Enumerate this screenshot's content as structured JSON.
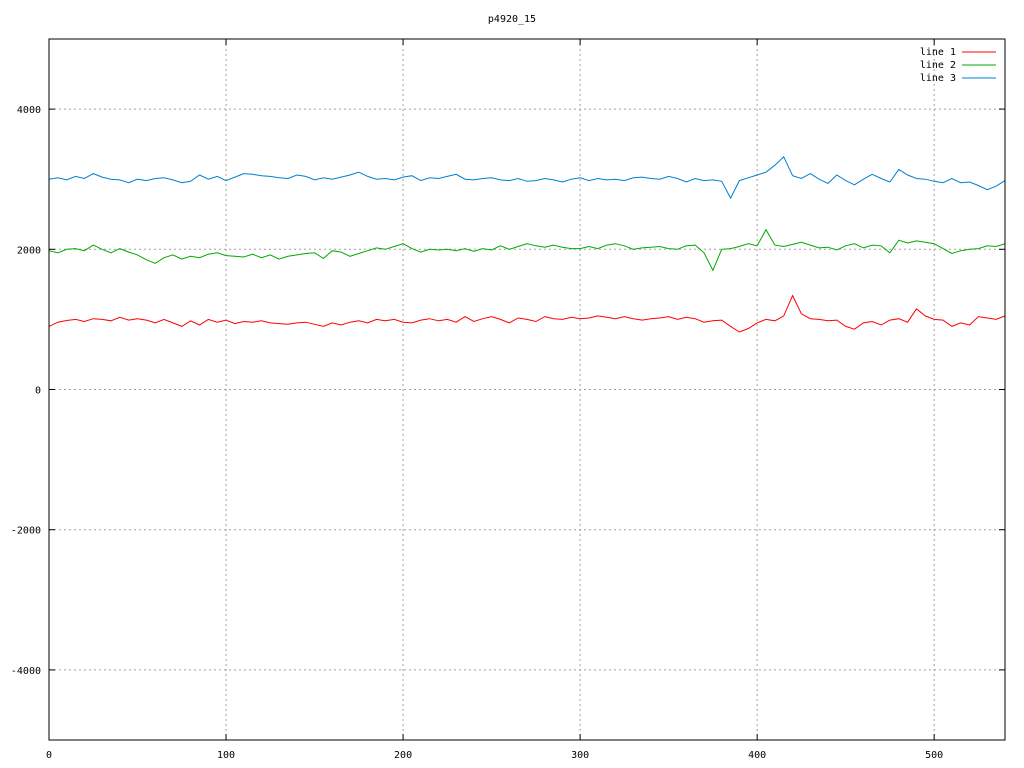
{
  "chart_data": {
    "type": "line",
    "title": "p4920_15",
    "xlabel": "",
    "ylabel": "",
    "xlim": [
      0,
      540
    ],
    "ylim": [
      -5000,
      5000
    ],
    "xticks": [
      0,
      100,
      200,
      300,
      400,
      500
    ],
    "yticks": [
      -4000,
      -2000,
      0,
      2000,
      4000
    ],
    "grid": true,
    "legend_position": "top-right",
    "x_step": 5,
    "series": [
      {
        "name": "line 1",
        "color": "#ff0000",
        "values": [
          900,
          960,
          985,
          1000,
          970,
          1010,
          1000,
          980,
          1030,
          990,
          1010,
          990,
          950,
          1000,
          950,
          900,
          980,
          920,
          1000,
          960,
          990,
          940,
          970,
          960,
          980,
          950,
          940,
          930,
          950,
          960,
          930,
          900,
          950,
          920,
          960,
          980,
          950,
          1000,
          980,
          1000,
          960,
          950,
          990,
          1010,
          980,
          1000,
          960,
          1040,
          970,
          1010,
          1040,
          1000,
          950,
          1020,
          1000,
          970,
          1040,
          1010,
          1000,
          1030,
          1010,
          1020,
          1050,
          1030,
          1010,
          1040,
          1010,
          990,
          1010,
          1020,
          1040,
          1000,
          1030,
          1010,
          960,
          980,
          990,
          900,
          820,
          870,
          950,
          1000,
          980,
          1050,
          1340,
          1080,
          1010,
          1000,
          980,
          990,
          900,
          860,
          950,
          970,
          920,
          990,
          1010,
          960,
          1150,
          1050,
          1000,
          990,
          900,
          950,
          920,
          1040,
          1020,
          1000,
          1050,
          1020,
          1100,
          1020,
          1000,
          1030,
          1010,
          990,
          1010,
          970,
          990,
          1000,
          980,
          990,
          1000
        ]
      },
      {
        "name": "line 2",
        "color": "#00aa00",
        "values": [
          1980,
          1950,
          2000,
          2010,
          1980,
          2060,
          2000,
          1950,
          2010,
          1960,
          1920,
          1850,
          1800,
          1880,
          1920,
          1860,
          1900,
          1880,
          1930,
          1950,
          1910,
          1900,
          1890,
          1930,
          1880,
          1920,
          1860,
          1900,
          1920,
          1940,
          1950,
          1870,
          1980,
          1960,
          1900,
          1940,
          1980,
          2020,
          2000,
          2040,
          2080,
          2010,
          1960,
          2000,
          1990,
          2000,
          1980,
          2010,
          1970,
          2010,
          1990,
          2050,
          2000,
          2040,
          2080,
          2050,
          2030,
          2060,
          2030,
          2010,
          2010,
          2040,
          2010,
          2060,
          2080,
          2050,
          2000,
          2020,
          2030,
          2040,
          2010,
          2000,
          2050,
          2060,
          1950,
          1700,
          2000,
          2010,
          2040,
          2080,
          2050,
          2280,
          2060,
          2040,
          2070,
          2100,
          2060,
          2020,
          2030,
          1990,
          2050,
          2080,
          2020,
          2060,
          2050,
          1950,
          2130,
          2090,
          2120,
          2100,
          2080,
          2010,
          1940,
          1980,
          2000,
          2010,
          2050,
          2040,
          2080,
          2150,
          2100,
          2150,
          2100,
          2080,
          2060,
          2040,
          2060,
          2100,
          2080,
          2070,
          2040,
          2110,
          2080,
          2040,
          2070,
          2120,
          2090,
          2060,
          2100,
          2050
        ]
      },
      {
        "name": "line 3",
        "color": "#0080d0",
        "values": [
          3000,
          3020,
          2990,
          3040,
          3010,
          3080,
          3030,
          3000,
          2990,
          2950,
          3000,
          2980,
          3010,
          3020,
          2990,
          2950,
          2970,
          3060,
          3000,
          3040,
          2980,
          3030,
          3080,
          3070,
          3050,
          3040,
          3020,
          3010,
          3060,
          3040,
          2990,
          3020,
          3000,
          3030,
          3060,
          3100,
          3040,
          3000,
          3010,
          2990,
          3030,
          3050,
          2980,
          3020,
          3010,
          3040,
          3070,
          3000,
          2990,
          3010,
          3020,
          2990,
          2980,
          3010,
          2970,
          2980,
          3010,
          2990,
          2960,
          3000,
          3020,
          2980,
          3010,
          2990,
          3000,
          2980,
          3020,
          3030,
          3010,
          3000,
          3040,
          3010,
          2960,
          3010,
          2980,
          2990,
          2970,
          2730,
          2980,
          3020,
          3060,
          3100,
          3200,
          3320,
          3050,
          3010,
          3080,
          3000,
          2940,
          3060,
          2980,
          2920,
          3000,
          3070,
          3010,
          2960,
          3140,
          3060,
          3010,
          3000,
          2970,
          2950,
          3010,
          2950,
          2960,
          2910,
          2850,
          2900,
          2980,
          3050,
          3070,
          3040,
          3010,
          2990,
          2960,
          2980,
          2940,
          2990,
          2950,
          2920,
          2890,
          2960,
          2990,
          2920,
          2940,
          2860,
          2970,
          2910,
          2880,
          2950,
          2880,
          2860
        ]
      }
    ]
  }
}
